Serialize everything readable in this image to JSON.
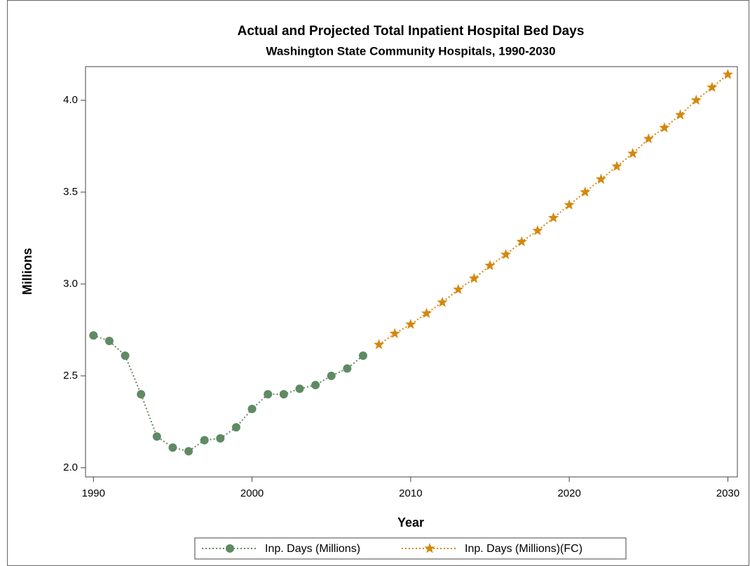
{
  "chart_data": {
    "type": "line",
    "title": "Actual and Projected Total Inpatient Hospital Bed Days",
    "subtitle": "Washington State Community Hospitals, 1990-2030",
    "x_label": "Year",
    "y_label": "Millions",
    "x": [
      1990,
      1991,
      1992,
      1993,
      1994,
      1995,
      1996,
      1997,
      1998,
      1999,
      2000,
      2001,
      2002,
      2003,
      2004,
      2005,
      2006,
      2007,
      2008,
      2009,
      2010,
      2011,
      2012,
      2013,
      2014,
      2015,
      2016,
      2017,
      2018,
      2019,
      2020,
      2021,
      2022,
      2023,
      2024,
      2025,
      2026,
      2027,
      2028,
      2029,
      2030
    ],
    "series": [
      {
        "name": "Inp. Days (Millions)",
        "color": "#5f8a63",
        "marker": "circle",
        "values": [
          2.72,
          2.69,
          2.61,
          2.4,
          2.17,
          2.11,
          2.09,
          2.15,
          2.16,
          2.22,
          2.32,
          2.4,
          2.4,
          2.43,
          2.45,
          2.5,
          2.54,
          2.61,
          null,
          null,
          null,
          null,
          null,
          null,
          null,
          null,
          null,
          null,
          null,
          null,
          null,
          null,
          null,
          null,
          null,
          null,
          null,
          null,
          null,
          null,
          null
        ]
      },
      {
        "name": "Inp. Days (Millions)(FC)",
        "color": "#d4880f",
        "marker": "star",
        "values": [
          null,
          null,
          null,
          null,
          null,
          null,
          null,
          null,
          null,
          null,
          null,
          null,
          null,
          null,
          null,
          null,
          null,
          null,
          2.67,
          2.73,
          2.78,
          2.84,
          2.9,
          2.97,
          3.03,
          3.1,
          3.16,
          3.23,
          3.29,
          3.36,
          3.43,
          3.5,
          3.57,
          3.64,
          3.71,
          3.79,
          3.85,
          3.92,
          4.0,
          4.07,
          4.14
        ]
      }
    ],
    "xlim": [
      1989.5,
      2030.6
    ],
    "xticks": [
      1990,
      2000,
      2010,
      2020,
      2030
    ],
    "ylim": [
      1.95,
      4.183
    ],
    "yticks": [
      {
        "value": 2,
        "label": "2.0"
      },
      2.5,
      {
        "value": 3,
        "label": "3.0"
      },
      3.5,
      {
        "value": 4,
        "label": "4.0"
      }
    ],
    "grid": false,
    "legend": "bottom"
  }
}
